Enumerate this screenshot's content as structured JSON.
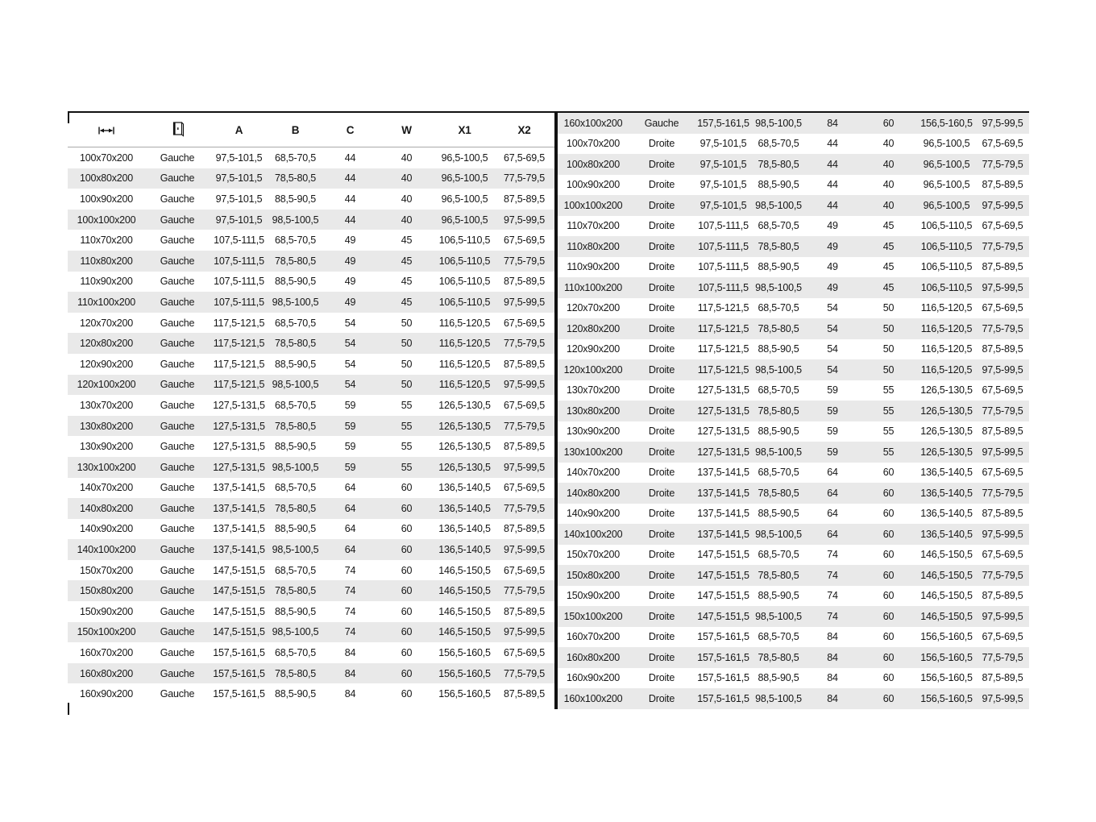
{
  "document": {
    "header": {
      "size_icon": "width-arrow-icon",
      "door_icon": "door-icon",
      "columns": [
        "A",
        "B",
        "C",
        "W",
        "X1",
        "X2"
      ]
    },
    "left_rows": [
      [
        "100x70x200",
        "Gauche",
        "97,5-101,5",
        "68,5-70,5",
        "44",
        "40",
        "96,5-100,5",
        "67,5-69,5"
      ],
      [
        "100x80x200",
        "Gauche",
        "97,5-101,5",
        "78,5-80,5",
        "44",
        "40",
        "96,5-100,5",
        "77,5-79,5"
      ],
      [
        "100x90x200",
        "Gauche",
        "97,5-101,5",
        "88,5-90,5",
        "44",
        "40",
        "96,5-100,5",
        "87,5-89,5"
      ],
      [
        "100x100x200",
        "Gauche",
        "97,5-101,5",
        "98,5-100,5",
        "44",
        "40",
        "96,5-100,5",
        "97,5-99,5"
      ],
      [
        "110x70x200",
        "Gauche",
        "107,5-111,5",
        "68,5-70,5",
        "49",
        "45",
        "106,5-110,5",
        "67,5-69,5"
      ],
      [
        "110x80x200",
        "Gauche",
        "107,5-111,5",
        "78,5-80,5",
        "49",
        "45",
        "106,5-110,5",
        "77,5-79,5"
      ],
      [
        "110x90x200",
        "Gauche",
        "107,5-111,5",
        "88,5-90,5",
        "49",
        "45",
        "106,5-110,5",
        "87,5-89,5"
      ],
      [
        "110x100x200",
        "Gauche",
        "107,5-111,5",
        "98,5-100,5",
        "49",
        "45",
        "106,5-110,5",
        "97,5-99,5"
      ],
      [
        "120x70x200",
        "Gauche",
        "117,5-121,5",
        "68,5-70,5",
        "54",
        "50",
        "116,5-120,5",
        "67,5-69,5"
      ],
      [
        "120x80x200",
        "Gauche",
        "117,5-121,5",
        "78,5-80,5",
        "54",
        "50",
        "116,5-120,5",
        "77,5-79,5"
      ],
      [
        "120x90x200",
        "Gauche",
        "117,5-121,5",
        "88,5-90,5",
        "54",
        "50",
        "116,5-120,5",
        "87,5-89,5"
      ],
      [
        "120x100x200",
        "Gauche",
        "117,5-121,5",
        "98,5-100,5",
        "54",
        "50",
        "116,5-120,5",
        "97,5-99,5"
      ],
      [
        "130x70x200",
        "Gauche",
        "127,5-131,5",
        "68,5-70,5",
        "59",
        "55",
        "126,5-130,5",
        "67,5-69,5"
      ],
      [
        "130x80x200",
        "Gauche",
        "127,5-131,5",
        "78,5-80,5",
        "59",
        "55",
        "126,5-130,5",
        "77,5-79,5"
      ],
      [
        "130x90x200",
        "Gauche",
        "127,5-131,5",
        "88,5-90,5",
        "59",
        "55",
        "126,5-130,5",
        "87,5-89,5"
      ],
      [
        "130x100x200",
        "Gauche",
        "127,5-131,5",
        "98,5-100,5",
        "59",
        "55",
        "126,5-130,5",
        "97,5-99,5"
      ],
      [
        "140x70x200",
        "Gauche",
        "137,5-141,5",
        "68,5-70,5",
        "64",
        "60",
        "136,5-140,5",
        "67,5-69,5"
      ],
      [
        "140x80x200",
        "Gauche",
        "137,5-141,5",
        "78,5-80,5",
        "64",
        "60",
        "136,5-140,5",
        "77,5-79,5"
      ],
      [
        "140x90x200",
        "Gauche",
        "137,5-141,5",
        "88,5-90,5",
        "64",
        "60",
        "136,5-140,5",
        "87,5-89,5"
      ],
      [
        "140x100x200",
        "Gauche",
        "137,5-141,5",
        "98,5-100,5",
        "64",
        "60",
        "136,5-140,5",
        "97,5-99,5"
      ],
      [
        "150x70x200",
        "Gauche",
        "147,5-151,5",
        "68,5-70,5",
        "74",
        "60",
        "146,5-150,5",
        "67,5-69,5"
      ],
      [
        "150x80x200",
        "Gauche",
        "147,5-151,5",
        "78,5-80,5",
        "74",
        "60",
        "146,5-150,5",
        "77,5-79,5"
      ],
      [
        "150x90x200",
        "Gauche",
        "147,5-151,5",
        "88,5-90,5",
        "74",
        "60",
        "146,5-150,5",
        "87,5-89,5"
      ],
      [
        "150x100x200",
        "Gauche",
        "147,5-151,5",
        "98,5-100,5",
        "74",
        "60",
        "146,5-150,5",
        "97,5-99,5"
      ],
      [
        "160x70x200",
        "Gauche",
        "157,5-161,5",
        "68,5-70,5",
        "84",
        "60",
        "156,5-160,5",
        "67,5-69,5"
      ],
      [
        "160x80x200",
        "Gauche",
        "157,5-161,5",
        "78,5-80,5",
        "84",
        "60",
        "156,5-160,5",
        "77,5-79,5"
      ],
      [
        "160x90x200",
        "Gauche",
        "157,5-161,5",
        "88,5-90,5",
        "84",
        "60",
        "156,5-160,5",
        "87,5-89,5"
      ]
    ],
    "right_rows": [
      [
        "160x100x200",
        "Gauche",
        "157,5-161,5",
        "98,5-100,5",
        "84",
        "60",
        "156,5-160,5",
        "97,5-99,5"
      ],
      [
        "100x70x200",
        "Droite",
        "97,5-101,5",
        "68,5-70,5",
        "44",
        "40",
        "96,5-100,5",
        "67,5-69,5"
      ],
      [
        "100x80x200",
        "Droite",
        "97,5-101,5",
        "78,5-80,5",
        "44",
        "40",
        "96,5-100,5",
        "77,5-79,5"
      ],
      [
        "100x90x200",
        "Droite",
        "97,5-101,5",
        "88,5-90,5",
        "44",
        "40",
        "96,5-100,5",
        "87,5-89,5"
      ],
      [
        "100x100x200",
        "Droite",
        "97,5-101,5",
        "98,5-100,5",
        "44",
        "40",
        "96,5-100,5",
        "97,5-99,5"
      ],
      [
        "110x70x200",
        "Droite",
        "107,5-111,5",
        "68,5-70,5",
        "49",
        "45",
        "106,5-110,5",
        "67,5-69,5"
      ],
      [
        "110x80x200",
        "Droite",
        "107,5-111,5",
        "78,5-80,5",
        "49",
        "45",
        "106,5-110,5",
        "77,5-79,5"
      ],
      [
        "110x90x200",
        "Droite",
        "107,5-111,5",
        "88,5-90,5",
        "49",
        "45",
        "106,5-110,5",
        "87,5-89,5"
      ],
      [
        "110x100x200",
        "Droite",
        "107,5-111,5",
        "98,5-100,5",
        "49",
        "45",
        "106,5-110,5",
        "97,5-99,5"
      ],
      [
        "120x70x200",
        "Droite",
        "117,5-121,5",
        "68,5-70,5",
        "54",
        "50",
        "116,5-120,5",
        "67,5-69,5"
      ],
      [
        "120x80x200",
        "Droite",
        "117,5-121,5",
        "78,5-80,5",
        "54",
        "50",
        "116,5-120,5",
        "77,5-79,5"
      ],
      [
        "120x90x200",
        "Droite",
        "117,5-121,5",
        "88,5-90,5",
        "54",
        "50",
        "116,5-120,5",
        "87,5-89,5"
      ],
      [
        "120x100x200",
        "Droite",
        "117,5-121,5",
        "98,5-100,5",
        "54",
        "50",
        "116,5-120,5",
        "97,5-99,5"
      ],
      [
        "130x70x200",
        "Droite",
        "127,5-131,5",
        "68,5-70,5",
        "59",
        "55",
        "126,5-130,5",
        "67,5-69,5"
      ],
      [
        "130x80x200",
        "Droite",
        "127,5-131,5",
        "78,5-80,5",
        "59",
        "55",
        "126,5-130,5",
        "77,5-79,5"
      ],
      [
        "130x90x200",
        "Droite",
        "127,5-131,5",
        "88,5-90,5",
        "59",
        "55",
        "126,5-130,5",
        "87,5-89,5"
      ],
      [
        "130x100x200",
        "Droite",
        "127,5-131,5",
        "98,5-100,5",
        "59",
        "55",
        "126,5-130,5",
        "97,5-99,5"
      ],
      [
        "140x70x200",
        "Droite",
        "137,5-141,5",
        "68,5-70,5",
        "64",
        "60",
        "136,5-140,5",
        "67,5-69,5"
      ],
      [
        "140x80x200",
        "Droite",
        "137,5-141,5",
        "78,5-80,5",
        "64",
        "60",
        "136,5-140,5",
        "77,5-79,5"
      ],
      [
        "140x90x200",
        "Droite",
        "137,5-141,5",
        "88,5-90,5",
        "64",
        "60",
        "136,5-140,5",
        "87,5-89,5"
      ],
      [
        "140x100x200",
        "Droite",
        "137,5-141,5",
        "98,5-100,5",
        "64",
        "60",
        "136,5-140,5",
        "97,5-99,5"
      ],
      [
        "150x70x200",
        "Droite",
        "147,5-151,5",
        "68,5-70,5",
        "74",
        "60",
        "146,5-150,5",
        "67,5-69,5"
      ],
      [
        "150x80x200",
        "Droite",
        "147,5-151,5",
        "78,5-80,5",
        "74",
        "60",
        "146,5-150,5",
        "77,5-79,5"
      ],
      [
        "150x90x200",
        "Droite",
        "147,5-151,5",
        "88,5-90,5",
        "74",
        "60",
        "146,5-150,5",
        "87,5-89,5"
      ],
      [
        "150x100x200",
        "Droite",
        "147,5-151,5",
        "98,5-100,5",
        "74",
        "60",
        "146,5-150,5",
        "97,5-99,5"
      ],
      [
        "160x70x200",
        "Droite",
        "157,5-161,5",
        "68,5-70,5",
        "84",
        "60",
        "156,5-160,5",
        "67,5-69,5"
      ],
      [
        "160x80x200",
        "Droite",
        "157,5-161,5",
        "78,5-80,5",
        "84",
        "60",
        "156,5-160,5",
        "77,5-79,5"
      ],
      [
        "160x90x200",
        "Droite",
        "157,5-161,5",
        "88,5-90,5",
        "84",
        "60",
        "156,5-160,5",
        "87,5-89,5"
      ],
      [
        "160x100x200",
        "Droite",
        "157,5-161,5",
        "98,5-100,5",
        "84",
        "60",
        "156,5-160,5",
        "97,5-99,5"
      ]
    ],
    "cell_names": [
      "cell-size",
      "cell-side",
      "cell-a",
      "cell-b",
      "cell-c",
      "cell-w",
      "cell-x1",
      "cell-x2"
    ]
  },
  "colors": {
    "stripe": "#e9e9e9",
    "text": "#161616",
    "ink": "#111111",
    "header_rule": "#a9a9a9"
  }
}
